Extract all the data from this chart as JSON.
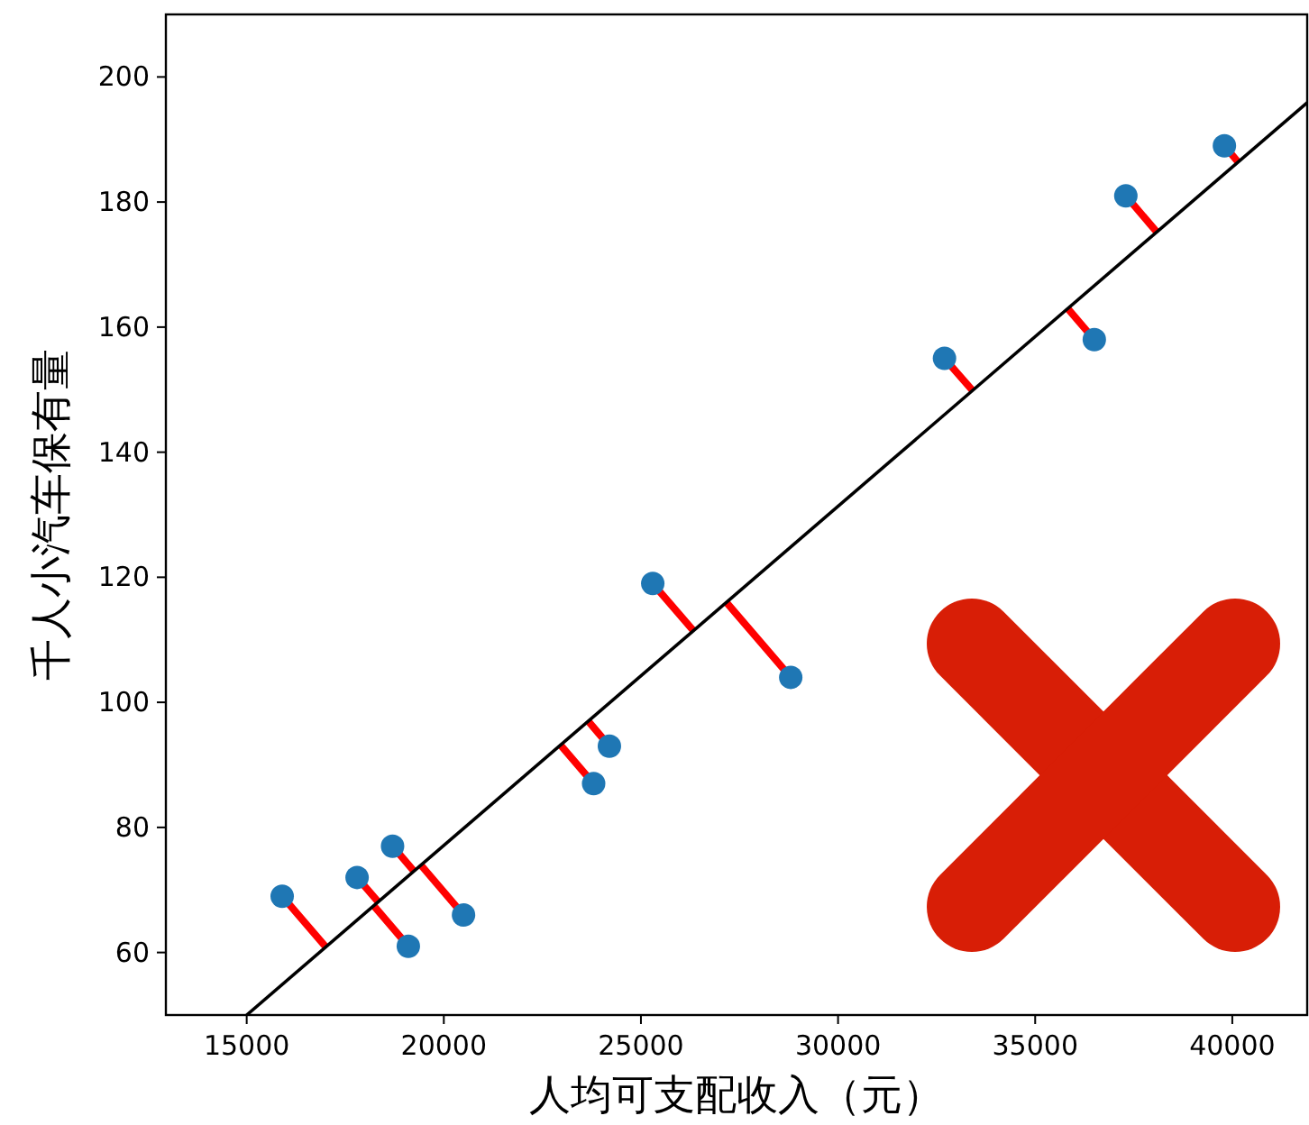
{
  "chart_data": {
    "type": "scatter",
    "xlabel": "人均可支配收入（元）",
    "ylabel": "千人小汽车保有量",
    "xlim": [
      12950,
      41900
    ],
    "ylim": [
      50,
      210
    ],
    "xticks": [
      15000,
      20000,
      25000,
      30000,
      35000,
      40000
    ],
    "yticks": [
      60,
      80,
      100,
      120,
      140,
      160,
      180,
      200
    ],
    "grid": false,
    "series": [
      {
        "type": "line",
        "color": "#ff0000",
        "x": [
          15900,
          17005,
          null,
          17800,
          18334,
          null,
          18700,
          19242,
          null,
          19100,
          18220,
          null,
          20500,
          19416,
          null,
          23800,
          22957,
          null,
          24200,
          23661,
          null,
          25300,
          26326,
          null,
          28800,
          27166,
          null,
          32700,
          33405,
          null,
          36500,
          35823,
          null,
          37300,
          38085,
          null,
          39800,
          40146
        ],
        "values": [
          69,
          60.9,
          null,
          72,
          68.1,
          null,
          77,
          73.0,
          null,
          61,
          67.5,
          null,
          66,
          74.0,
          null,
          87,
          93.2,
          null,
          93,
          97.0,
          null,
          119,
          111.5,
          null,
          104,
          116.0,
          null,
          155,
          149.9,
          null,
          158,
          163.0,
          null,
          181,
          175.2,
          null,
          189,
          186.4
        ]
      },
      {
        "type": "line",
        "color": "#000000",
        "x": [
          15000,
          41900
        ],
        "values": [
          50,
          195.9
        ]
      },
      {
        "color": "#1f77b4",
        "x": [
          15900,
          17800,
          18700,
          19100,
          20500,
          23800,
          24200,
          25300,
          28800,
          32700,
          36500,
          37300,
          39800
        ],
        "values": [
          69,
          72,
          77,
          61,
          66,
          87,
          93,
          119,
          104,
          155,
          158,
          181,
          189
        ]
      }
    ]
  }
}
